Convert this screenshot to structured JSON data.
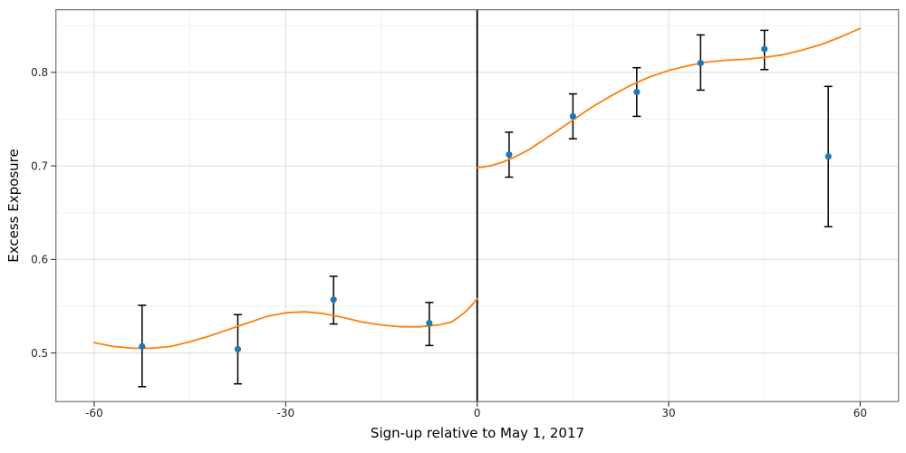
{
  "chart_data": {
    "type": "scatter",
    "title": "",
    "xlabel": "Sign-up relative to May 1, 2017",
    "ylabel": "Excess Exposure",
    "xlim": [
      -66,
      66
    ],
    "ylim": [
      0.448,
      0.867
    ],
    "xticks": [
      -60,
      -30,
      0,
      30,
      60
    ],
    "xtick_labels": [
      "-60",
      "-30",
      "0",
      "30",
      "60"
    ],
    "yticks": [
      0.5,
      0.6,
      0.7,
      0.8
    ],
    "ytick_labels": [
      "0.5",
      "0.6",
      "0.7",
      "0.8"
    ],
    "x_minor_gridlines": [
      -45,
      -15,
      15,
      45
    ],
    "y_minor_gridlines": [
      0.55,
      0.65,
      0.75,
      0.85
    ],
    "grid": true,
    "legend": "none",
    "vline_x": 0,
    "points": [
      {
        "x": -52.5,
        "y": 0.507,
        "y_lo": 0.464,
        "y_hi": 0.551
      },
      {
        "x": -37.5,
        "y": 0.504,
        "y_lo": 0.467,
        "y_hi": 0.541
      },
      {
        "x": -22.5,
        "y": 0.557,
        "y_lo": 0.531,
        "y_hi": 0.582
      },
      {
        "x": -7.5,
        "y": 0.532,
        "y_lo": 0.508,
        "y_hi": 0.554
      },
      {
        "x": 5,
        "y": 0.712,
        "y_lo": 0.688,
        "y_hi": 0.736
      },
      {
        "x": 15,
        "y": 0.753,
        "y_lo": 0.729,
        "y_hi": 0.777
      },
      {
        "x": 25,
        "y": 0.779,
        "y_lo": 0.753,
        "y_hi": 0.805
      },
      {
        "x": 35,
        "y": 0.81,
        "y_lo": 0.781,
        "y_hi": 0.84
      },
      {
        "x": 45,
        "y": 0.825,
        "y_lo": 0.803,
        "y_hi": 0.845
      },
      {
        "x": 55,
        "y": 0.71,
        "y_lo": 0.635,
        "y_hi": 0.785
      }
    ],
    "smooth_left": [
      [
        -60,
        0.511
      ],
      [
        -57,
        0.507
      ],
      [
        -54,
        0.505
      ],
      [
        -51,
        0.505
      ],
      [
        -48,
        0.507
      ],
      [
        -45,
        0.512
      ],
      [
        -42,
        0.518
      ],
      [
        -39,
        0.525
      ],
      [
        -36,
        0.532
      ],
      [
        -33,
        0.539
      ],
      [
        -30,
        0.543
      ],
      [
        -27,
        0.544
      ],
      [
        -24,
        0.542
      ],
      [
        -21,
        0.538
      ],
      [
        -18,
        0.533
      ],
      [
        -15,
        0.53
      ],
      [
        -12,
        0.528
      ],
      [
        -9,
        0.528
      ],
      [
        -6,
        0.53
      ],
      [
        -4,
        0.533
      ],
      [
        -2,
        0.543
      ],
      [
        -1,
        0.55
      ],
      [
        0,
        0.558
      ]
    ],
    "smooth_right": [
      [
        0,
        0.698
      ],
      [
        2,
        0.7
      ],
      [
        4,
        0.704
      ],
      [
        6,
        0.71
      ],
      [
        8,
        0.717
      ],
      [
        10,
        0.726
      ],
      [
        12,
        0.735
      ],
      [
        15,
        0.749
      ],
      [
        18,
        0.763
      ],
      [
        21,
        0.775
      ],
      [
        24,
        0.786
      ],
      [
        27,
        0.795
      ],
      [
        30,
        0.802
      ],
      [
        33,
        0.807
      ],
      [
        36,
        0.811
      ],
      [
        39,
        0.813
      ],
      [
        42,
        0.814
      ],
      [
        45,
        0.816
      ],
      [
        48,
        0.819
      ],
      [
        51,
        0.824
      ],
      [
        54,
        0.83
      ],
      [
        57,
        0.838
      ],
      [
        60,
        0.847
      ]
    ],
    "colors": {
      "point": "#1f77b4",
      "errorbar": "#000000",
      "smooth": "#ff7f0e",
      "vline": "#000000",
      "grid_major": "#e3e3e3",
      "grid_minor": "#f0f0f0",
      "panel_border": "#7f7f7f",
      "tick_mark": "#333333",
      "tick_label": "#262626",
      "axis_title": "#000000",
      "background": "#ffffff"
    }
  }
}
